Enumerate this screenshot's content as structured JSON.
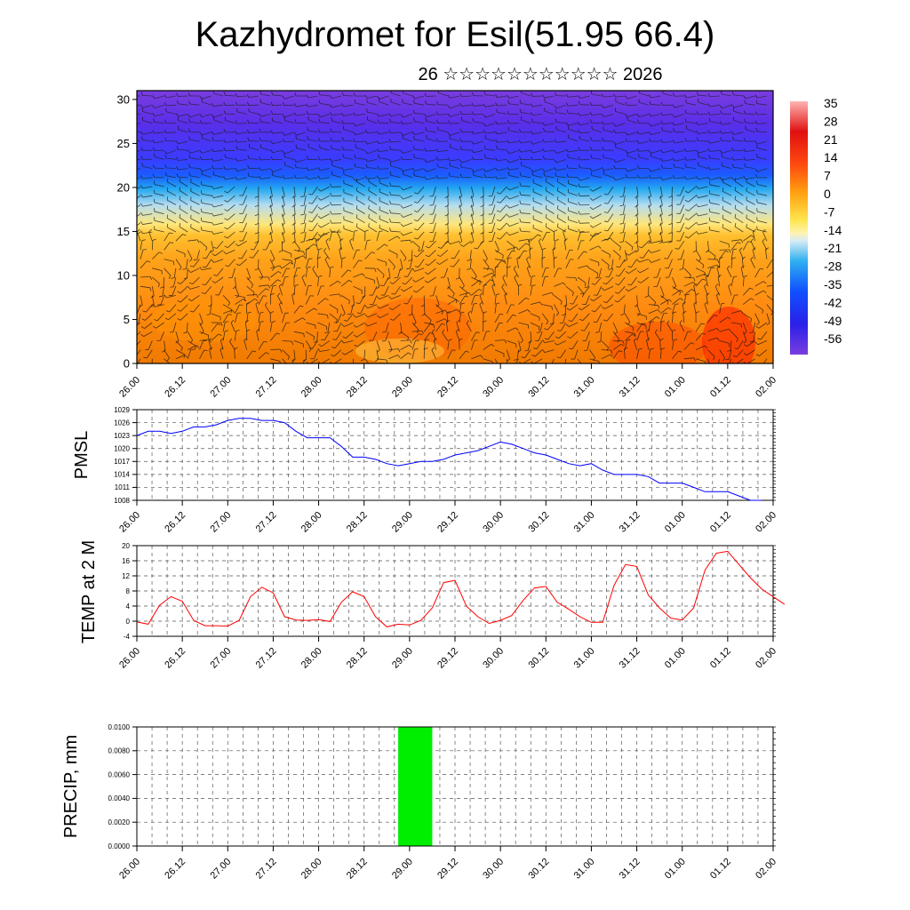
{
  "title": "Kazhydromet for Esil(51.95 66.4)",
  "subtitle": "26 ☆☆☆☆☆☆☆☆☆☆☆ 2026",
  "colors": {
    "pmsl_line": "#0000ff",
    "temp_line": "#ff0000",
    "precip_bar": "#00ee00"
  },
  "chart_data": [
    {
      "type": "heatmap",
      "name": "vertical temperature cross-section with wind barbs",
      "title": "",
      "ylabel": "",
      "ylim": [
        0,
        31
      ],
      "yticks": [
        0,
        5,
        10,
        15,
        20,
        25,
        30
      ],
      "xticks": [
        "26.00",
        "26.12",
        "27.00",
        "27.12",
        "28.00",
        "28.12",
        "29.00",
        "29.12",
        "30.00",
        "30.12",
        "31.00",
        "31.12",
        "01.00",
        "01.12",
        "02.00"
      ],
      "colorbar_labels": [
        "35",
        "28",
        "21",
        "14",
        "7",
        "0",
        "-7",
        "-14",
        "-21",
        "-28",
        "-35",
        "-42",
        "-49",
        "-56"
      ]
    },
    {
      "type": "line",
      "name": "pmsl",
      "ylabel": "PMSL",
      "ylim": [
        1008,
        1029
      ],
      "yticks": [
        1008,
        1011,
        1014,
        1017,
        1020,
        1023,
        1026,
        1029
      ],
      "xticks": [
        "26.00",
        "26.12",
        "27.00",
        "27.12",
        "28.00",
        "28.12",
        "29.00",
        "29.12",
        "30.00",
        "30.12",
        "31.00",
        "31.12",
        "01.00",
        "01.12",
        "02.00"
      ],
      "step_hours": 3,
      "values": [
        1023,
        1024,
        1024,
        1023.5,
        1024,
        1025,
        1025,
        1025.5,
        1026.5,
        1027,
        1027,
        1026.5,
        1026.5,
        1026,
        1024,
        1022.5,
        1022.5,
        1022.5,
        1020.5,
        1018,
        1018,
        1017.5,
        1016.5,
        1016,
        1016.5,
        1017,
        1017,
        1017.5,
        1018.5,
        1019,
        1019.5,
        1020.5,
        1021.5,
        1021,
        1020,
        1019,
        1018.5,
        1017.5,
        1016.5,
        1016,
        1016.5,
        1015,
        1014,
        1014,
        1014,
        1013.5,
        1012,
        1012,
        1012,
        1011,
        1010,
        1010,
        1010,
        1009,
        1008,
        1008
      ]
    },
    {
      "type": "line",
      "name": "temperature at 2 m",
      "ylabel": "TEMP at 2 M",
      "ylim": [
        -4,
        20
      ],
      "yticks": [
        -4,
        0,
        4,
        8,
        12,
        16,
        20
      ],
      "xticks": [
        "26.00",
        "26.12",
        "27.00",
        "27.12",
        "28.00",
        "28.12",
        "29.00",
        "29.12",
        "30.00",
        "30.12",
        "31.00",
        "31.12",
        "01.00",
        "01.12",
        "02.00"
      ],
      "step_hours": 3,
      "values": [
        -0.2,
        -0.8,
        4.2,
        6.5,
        5.3,
        0.2,
        -1.2,
        -1.2,
        -1.3,
        0.2,
        6.5,
        9,
        7.5,
        1.2,
        0.3,
        0.2,
        0.4,
        -0.1,
        5,
        7.8,
        6.5,
        1.2,
        -1.5,
        -0.8,
        -1,
        0.2,
        3.5,
        10.2,
        10.8,
        4,
        1.2,
        -0.6,
        0.2,
        1.5,
        5.5,
        8.8,
        9.2,
        5,
        3.2,
        1.2,
        -0.3,
        -0.3,
        9.5,
        15,
        14.5,
        7,
        3.5,
        0.8,
        0.3,
        3.5,
        13.5,
        18,
        18.5,
        15,
        11.5,
        8.5,
        6.5,
        4.5
      ]
    },
    {
      "type": "bar",
      "name": "precipitation",
      "ylabel": "PRECIP, mm",
      "ylim": [
        0,
        0.01
      ],
      "ytick_labels": [
        "0.0000",
        "0.0020",
        "0.0040",
        "0.0060",
        "0.0080",
        "0.0100"
      ],
      "xticks": [
        "26.00",
        "26.12",
        "27.00",
        "27.12",
        "28.00",
        "28.12",
        "29.00",
        "29.12",
        "30.00",
        "30.12",
        "31.00",
        "31.12",
        "01.00",
        "01.12",
        "02.00"
      ],
      "bars": [
        {
          "start_hour": 69,
          "end_hour": 78,
          "value": 0.01
        }
      ]
    }
  ]
}
